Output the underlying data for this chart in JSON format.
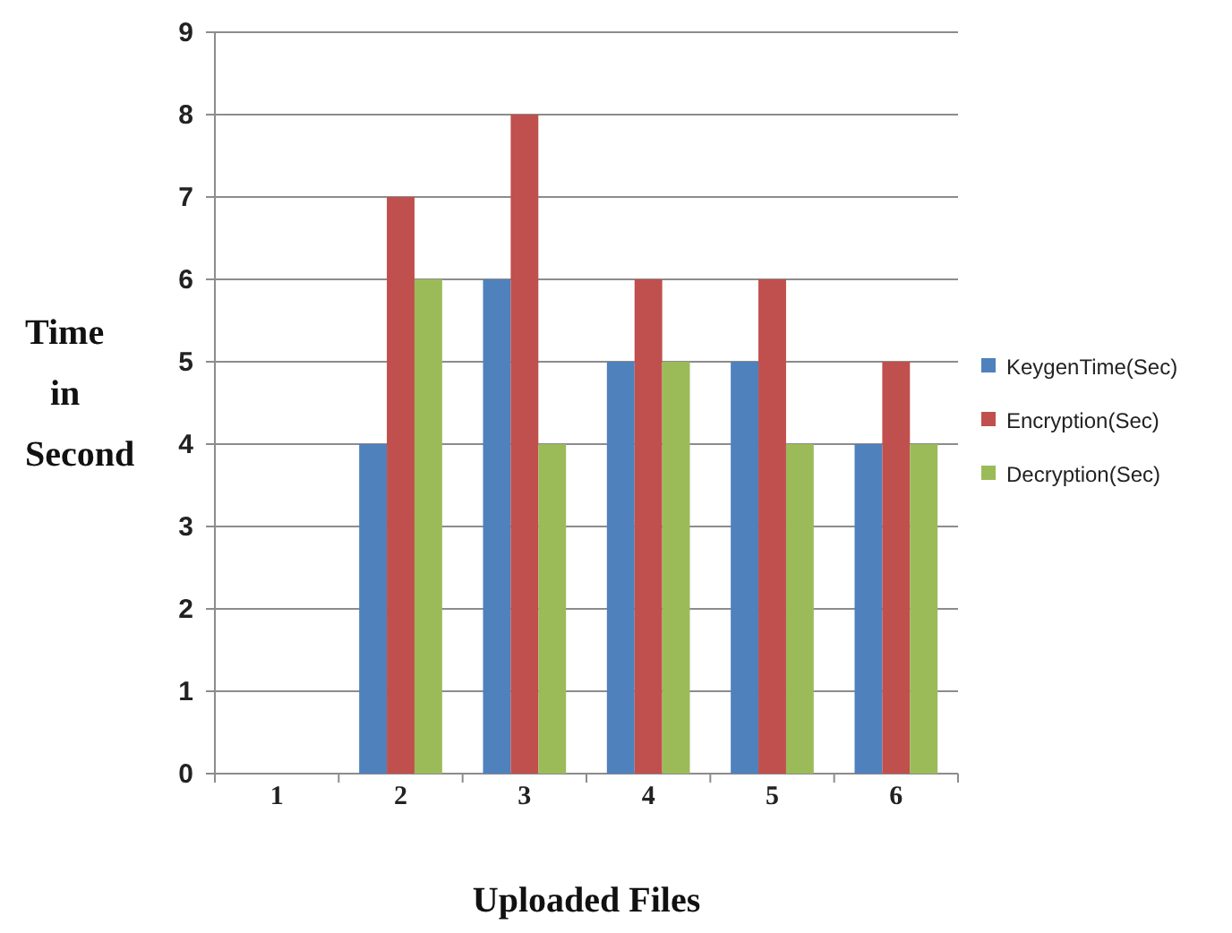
{
  "chart_data": {
    "type": "bar",
    "xlabel": "Uploaded Files",
    "ylabel": "Time in Second",
    "categories": [
      "1",
      "2",
      "3",
      "4",
      "5",
      "6"
    ],
    "series": [
      {
        "name": "KeygenTime(Sec)",
        "color": "#4f81bd",
        "values": [
          0,
          4,
          6,
          5,
          5,
          4
        ]
      },
      {
        "name": "Encryption(Sec)",
        "color": "#c0504d",
        "values": [
          0,
          7,
          8,
          6,
          6,
          5
        ]
      },
      {
        "name": "Decryption(Sec)",
        "color": "#9bbb59",
        "values": [
          0,
          6,
          4,
          5,
          4,
          4
        ]
      }
    ],
    "ylim": [
      0,
      9
    ],
    "yticks": [
      0,
      1,
      2,
      3,
      4,
      5,
      6,
      7,
      8,
      9
    ],
    "grid": "y",
    "legend": "right"
  }
}
